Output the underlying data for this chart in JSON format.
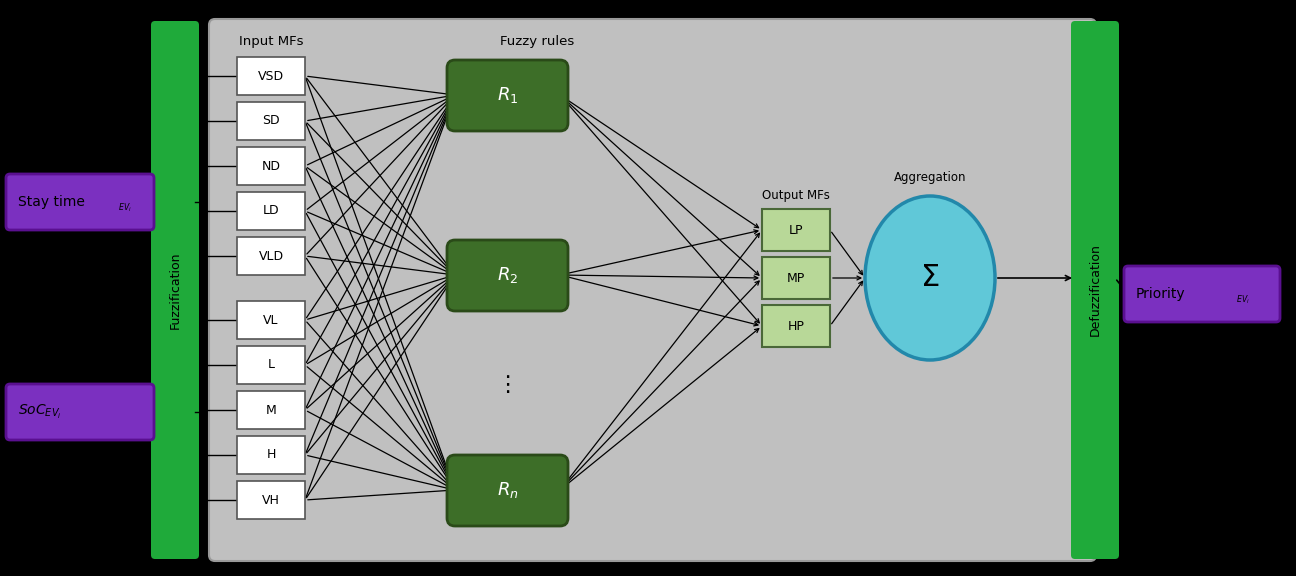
{
  "fig_width": 12.96,
  "fig_height": 5.76,
  "bg_color": "#000000",
  "gray_box_color": "#c0c0c0",
  "gray_box_edge": "#999999",
  "green_bar_color": "#1faa3a",
  "purple_box_color": "#7b30c0",
  "purple_box_edge": "#5a1090",
  "rule_box_color": "#3d6e28",
  "rule_box_border": "#2a4a18",
  "output_box_color": "#b8d898",
  "output_box_border": "#4a6838",
  "sigma_fill": "#60c8d8",
  "sigma_edge": "#2288aa",
  "input_mf_top": [
    "VSD",
    "SD",
    "ND",
    "LD",
    "VLD"
  ],
  "input_mf_bot": [
    "VL",
    "L",
    "M",
    "H",
    "VH"
  ],
  "rule_texts": [
    "$R_1$",
    "$R_2$",
    "$R_n$"
  ],
  "output_labels": [
    "LP",
    "MP",
    "HP"
  ],
  "input_mfs_label": "Input MFs",
  "fuzzy_rules_label": "Fuzzy rules",
  "output_mfs_label": "Output MFs",
  "aggregation_label": "Aggregation",
  "fuzzification_text": "Fuzzification",
  "defuzzification_text": "Defuzzification",
  "stay_time_label": "Stay time",
  "stay_sub": "$_{EV_i}$",
  "soc_label": "$SoC_{EV_i}$",
  "priority_label": "Priority",
  "priority_sub": "$_{EV_i}$"
}
